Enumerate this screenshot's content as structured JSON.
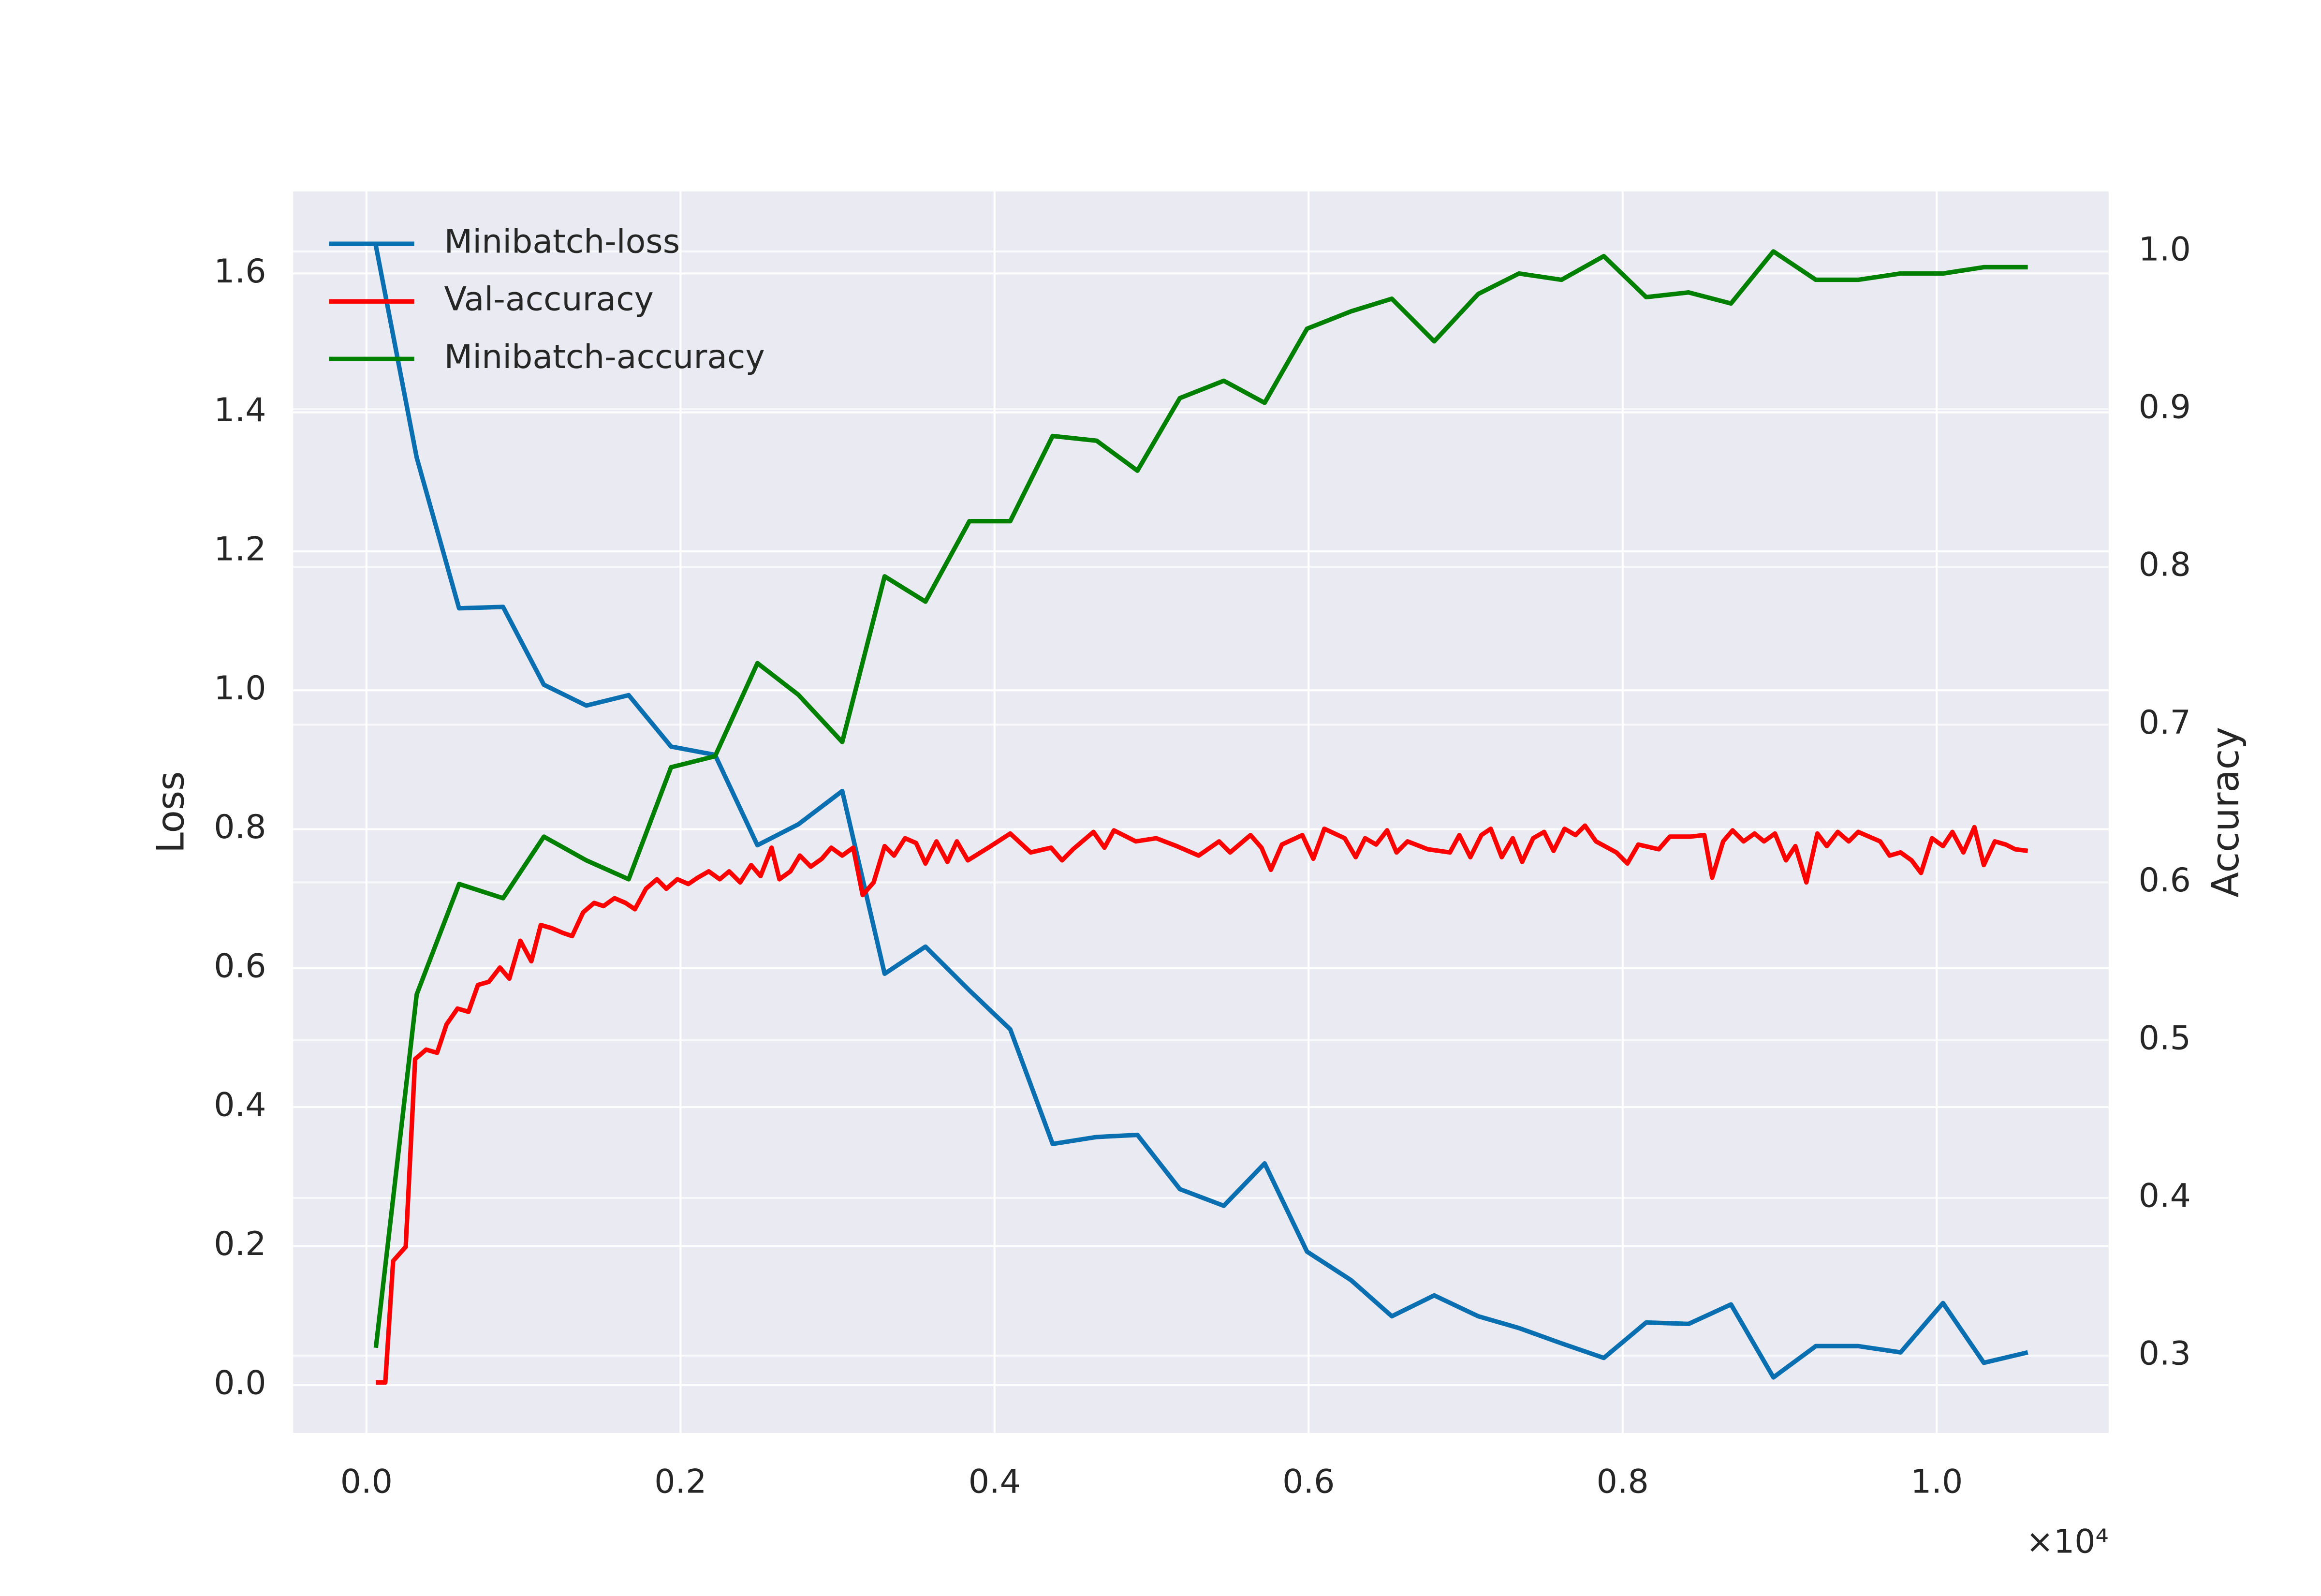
{
  "chart_data": {
    "type": "line",
    "y_label": "Loss",
    "y2_label": "Accuracy",
    "x_offset_label": "×10⁴",
    "xlim": [
      -467,
      11095
    ],
    "ylim": [
      -0.069,
      1.718
    ],
    "y2lim": [
      0.251,
      1.038
    ],
    "xticks": [
      {
        "value": 0,
        "label": "0.0"
      },
      {
        "value": 2000,
        "label": "0.2"
      },
      {
        "value": 4000,
        "label": "0.4"
      },
      {
        "value": 6000,
        "label": "0.6"
      },
      {
        "value": 8000,
        "label": "0.8"
      },
      {
        "value": 10000,
        "label": "1.0"
      }
    ],
    "yticks": [
      {
        "value": 0,
        "label": "0.0"
      },
      0.2,
      0.4,
      0.6,
      0.8,
      {
        "value": 1,
        "label": "1.0"
      },
      1.2,
      1.4,
      1.6
    ],
    "y2ticks": [
      0.3,
      0.4,
      0.5,
      0.6,
      0.7,
      0.8,
      0.9,
      {
        "value": 1,
        "label": "1.0"
      }
    ],
    "grid": true,
    "legend": "upper left",
    "series": [
      {
        "name": "Minibatch-loss",
        "color": "#0a6fb0",
        "axis": "y",
        "x": [
          60,
          320,
          590,
          870,
          1130,
          1400,
          1670,
          1940,
          2220,
          2490,
          2750,
          3030,
          3300,
          3560,
          3840,
          4100,
          4370,
          4650,
          4910,
          5180,
          5460,
          5720,
          5990,
          6270,
          6530,
          6800,
          7080,
          7340,
          7610,
          7880,
          8150,
          8420,
          8690,
          8960,
          9230,
          9500,
          9770,
          10040,
          10300,
          10580
        ],
        "values": [
          1.64,
          1.335,
          1.118,
          1.12,
          1.008,
          0.978,
          0.993,
          0.919,
          0.907,
          0.777,
          0.807,
          0.855,
          0.592,
          0.631,
          0.568,
          0.512,
          0.347,
          0.357,
          0.36,
          0.282,
          0.258,
          0.319,
          0.192,
          0.151,
          0.099,
          0.129,
          0.099,
          0.082,
          0.06,
          0.039,
          0.09,
          0.088,
          0.116,
          0.011,
          0.056,
          0.056,
          0.047,
          0.118,
          0.032,
          0.047
        ]
      },
      {
        "name": "Val-accuracy",
        "color": "#ff0000",
        "axis": "y2",
        "x": [
          60,
          120,
          170,
          250,
          310,
          380,
          450,
          510,
          580,
          650,
          710,
          780,
          850,
          910,
          980,
          1050,
          1110,
          1180,
          1250,
          1310,
          1380,
          1450,
          1510,
          1580,
          1650,
          1710,
          1780,
          1850,
          1910,
          1980,
          2050,
          2110,
          2180,
          2250,
          2310,
          2380,
          2450,
          2510,
          2580,
          2630,
          2700,
          2760,
          2830,
          2900,
          2960,
          3030,
          3100,
          3160,
          3230,
          3300,
          3360,
          3430,
          3500,
          3560,
          3630,
          3700,
          3760,
          3830,
          3960,
          4100,
          4230,
          4360,
          4430,
          4500,
          4630,
          4700,
          4760,
          4900,
          5030,
          5160,
          5300,
          5430,
          5500,
          5630,
          5700,
          5760,
          5830,
          5960,
          6030,
          6100,
          6230,
          6300,
          6360,
          6430,
          6500,
          6560,
          6630,
          6760,
          6900,
          6960,
          7030,
          7100,
          7160,
          7230,
          7300,
          7360,
          7430,
          7500,
          7560,
          7630,
          7700,
          7760,
          7830,
          7960,
          8030,
          8100,
          8230,
          8300,
          8430,
          8520,
          8570,
          8640,
          8700,
          8770,
          8840,
          8900,
          8970,
          9040,
          9100,
          9170,
          9240,
          9300,
          9370,
          9440,
          9500,
          9640,
          9700,
          9770,
          9840,
          9900,
          9970,
          10040,
          10100,
          10170,
          10240,
          10300,
          10370,
          10440,
          10500,
          10580
        ],
        "values": [
          0.283,
          0.283,
          0.36,
          0.369,
          0.488,
          0.494,
          0.492,
          0.51,
          0.52,
          0.518,
          0.535,
          0.537,
          0.546,
          0.539,
          0.563,
          0.55,
          0.573,
          0.571,
          0.568,
          0.566,
          0.581,
          0.587,
          0.585,
          0.59,
          0.587,
          0.583,
          0.596,
          0.602,
          0.596,
          0.602,
          0.599,
          0.603,
          0.607,
          0.602,
          0.607,
          0.6,
          0.611,
          0.604,
          0.622,
          0.602,
          0.607,
          0.617,
          0.61,
          0.615,
          0.622,
          0.617,
          0.622,
          0.592,
          0.6,
          0.623,
          0.617,
          0.628,
          0.625,
          0.612,
          0.626,
          0.613,
          0.626,
          0.614,
          0.622,
          0.631,
          0.619,
          0.622,
          0.614,
          0.621,
          0.632,
          0.622,
          0.633,
          0.626,
          0.628,
          0.623,
          0.617,
          0.626,
          0.619,
          0.63,
          0.622,
          0.608,
          0.624,
          0.63,
          0.615,
          0.634,
          0.628,
          0.616,
          0.628,
          0.624,
          0.633,
          0.619,
          0.626,
          0.621,
          0.619,
          0.63,
          0.616,
          0.63,
          0.634,
          0.616,
          0.628,
          0.613,
          0.628,
          0.632,
          0.62,
          0.634,
          0.63,
          0.636,
          0.626,
          0.619,
          0.612,
          0.624,
          0.621,
          0.629,
          0.629,
          0.63,
          0.603,
          0.626,
          0.633,
          0.626,
          0.631,
          0.626,
          0.631,
          0.614,
          0.623,
          0.6,
          0.631,
          0.623,
          0.632,
          0.626,
          0.632,
          0.626,
          0.617,
          0.619,
          0.614,
          0.606,
          0.628,
          0.623,
          0.632,
          0.619,
          0.635,
          0.611,
          0.626,
          0.624,
          0.621,
          0.62
        ]
      },
      {
        "name": "Minibatch-accuracy",
        "color": "#008000",
        "axis": "y2",
        "x": [
          60,
          320,
          590,
          870,
          1130,
          1400,
          1670,
          1940,
          2220,
          2490,
          2750,
          3030,
          3300,
          3560,
          3840,
          4100,
          4370,
          4650,
          4910,
          5180,
          5460,
          5720,
          5990,
          6270,
          6530,
          6800,
          7080,
          7340,
          7610,
          7880,
          8150,
          8420,
          8690,
          8960,
          9230,
          9500,
          9770,
          10040,
          10300,
          10580
        ],
        "values": [
          0.305,
          0.529,
          0.599,
          0.59,
          0.629,
          0.614,
          0.602,
          0.673,
          0.68,
          0.739,
          0.719,
          0.689,
          0.794,
          0.778,
          0.829,
          0.829,
          0.883,
          0.88,
          0.861,
          0.907,
          0.918,
          0.904,
          0.951,
          0.962,
          0.97,
          0.943,
          0.973,
          0.986,
          0.982,
          0.997,
          0.971,
          0.974,
          0.967,
          1.0,
          0.982,
          0.982,
          0.986,
          0.986,
          0.99,
          0.99
        ]
      }
    ]
  }
}
